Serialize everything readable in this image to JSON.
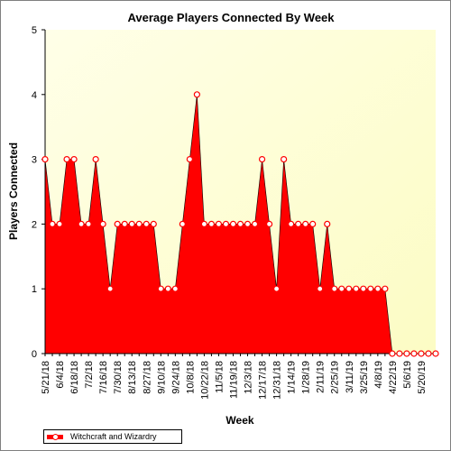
{
  "chart_data": {
    "type": "area",
    "title": "Average Players Connected By Week",
    "xlabel": "Week",
    "ylabel": "Players Connected",
    "ylim": [
      0,
      5
    ],
    "yticks": [
      "0",
      "1",
      "2",
      "3",
      "4",
      "5"
    ],
    "grid": false,
    "legend": "bottom-left",
    "x_tick_labels": [
      "5/21/18",
      "6/4/18",
      "6/18/18",
      "7/2/18",
      "7/16/18",
      "7/30/18",
      "8/13/18",
      "8/27/18",
      "9/10/18",
      "9/24/18",
      "10/8/18",
      "10/22/18",
      "11/5/18",
      "11/19/18",
      "12/3/18",
      "12/17/18",
      "12/31/18",
      "1/14/19",
      "1/28/19",
      "2/11/19",
      "2/25/19",
      "3/11/19",
      "3/25/19",
      "4/8/19",
      "4/22/19",
      "5/6/19",
      "5/20/19"
    ],
    "series": [
      {
        "name": "Witchcraft and Wizardry",
        "color": "#ff0000",
        "values": [
          3,
          2,
          2,
          3,
          3,
          2,
          2,
          3,
          2,
          1,
          2,
          2,
          2,
          2,
          2,
          2,
          1,
          1,
          1,
          2,
          3,
          4,
          2,
          2,
          2,
          2,
          2,
          2,
          2,
          2,
          3,
          2,
          1,
          3,
          2,
          2,
          2,
          2,
          1,
          2,
          1,
          1,
          1,
          1,
          1,
          1,
          1,
          1,
          0,
          0,
          0,
          0,
          0,
          0,
          0
        ]
      }
    ]
  }
}
